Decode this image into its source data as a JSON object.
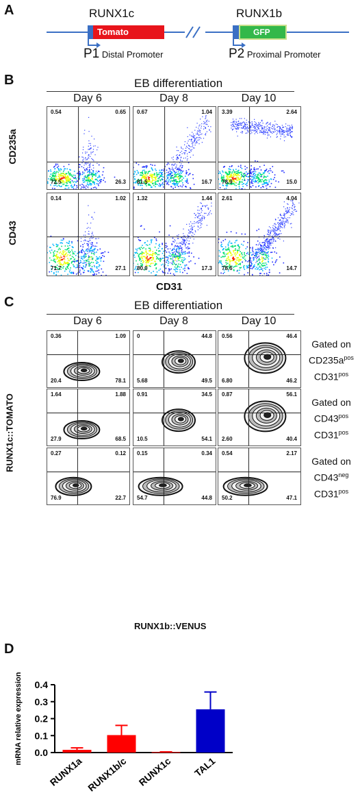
{
  "panels": {
    "a": "A",
    "b": "B",
    "c": "C",
    "d": "D"
  },
  "panel_a": {
    "gene1": "RUNX1c",
    "gene2": "RUNX1b",
    "box1": "Tomato",
    "box2": "GFP",
    "p1": "P1",
    "p1_text": "Distal Promoter",
    "p2": "P2",
    "p2_text": "Proximal Promoter",
    "colors": {
      "line": "#3a6fc4",
      "tomato": "#e8141b",
      "gfp": "#2db84a"
    }
  },
  "panel_b": {
    "title": "EB differentiation",
    "days": [
      "Day 6",
      "Day 8",
      "Day 10"
    ],
    "rows": [
      {
        "ylabel": "CD235a",
        "quadrants": [
          [
            "0.54",
            "0.65",
            "72.5",
            "26.3"
          ],
          [
            "0.67",
            "1.04",
            "81.5",
            "16.7"
          ],
          [
            "3.39",
            "2.64",
            "78.9",
            "15.0"
          ]
        ]
      },
      {
        "ylabel": "CD43",
        "quadrants": [
          [
            "0.14",
            "1.02",
            "71.7",
            "27.1"
          ],
          [
            "1.32",
            "1.44",
            "80.0",
            "17.3"
          ],
          [
            "2.61",
            "4.04",
            "78.6",
            "14.7"
          ]
        ]
      }
    ],
    "xlabel": "CD31"
  },
  "panel_c": {
    "title": "EB differentiation",
    "days": [
      "Day 6",
      "Day 8",
      "Day 10"
    ],
    "ylabel": "RUNX1c::TOMATO",
    "xlabel": "RUNX1b::VENUS",
    "rows": [
      {
        "gate": [
          "Gated on",
          "CD235a",
          "pos",
          "CD31",
          "pos"
        ],
        "quadrants": [
          [
            "0.36",
            "1.09",
            "20.4",
            "78.1"
          ],
          [
            "0",
            "44.8",
            "5.68",
            "49.5"
          ],
          [
            "0.56",
            "46.4",
            "6.80",
            "46.2"
          ]
        ]
      },
      {
        "gate": [
          "Gated on",
          "CD43",
          "pos",
          "CD31",
          "pos"
        ],
        "quadrants": [
          [
            "1.64",
            "1.88",
            "27.9",
            "68.5"
          ],
          [
            "0.91",
            "34.5",
            "10.5",
            "54.1"
          ],
          [
            "0.87",
            "56.1",
            "2.60",
            "40.4"
          ]
        ]
      },
      {
        "gate": [
          "Gated on",
          "CD43",
          "neg",
          "CD31",
          "pos"
        ],
        "quadrants": [
          [
            "0.27",
            "0.12",
            "76.9",
            "22.7"
          ],
          [
            "0.15",
            "0.34",
            "54.7",
            "44.8"
          ],
          [
            "0.54",
            "2.17",
            "50.2",
            "47.1"
          ]
        ]
      }
    ]
  },
  "chart_data": {
    "type": "bar",
    "categories": [
      "RUNX1a",
      "RUNX1b/c",
      "RUNX1c",
      "TAL1"
    ],
    "values": [
      0.016,
      0.103,
      0.003,
      0.255
    ],
    "errors": [
      0.012,
      0.057,
      0.001,
      0.102
    ],
    "colors": [
      "#ff0000",
      "#ff0000",
      "#ff0000",
      "#0000c8"
    ],
    "ylabel": "mRNA relative expression",
    "ylim": [
      0,
      0.4
    ],
    "yticks": [
      "0.0",
      "0.1",
      "0.2",
      "0.3",
      "0.4"
    ]
  }
}
